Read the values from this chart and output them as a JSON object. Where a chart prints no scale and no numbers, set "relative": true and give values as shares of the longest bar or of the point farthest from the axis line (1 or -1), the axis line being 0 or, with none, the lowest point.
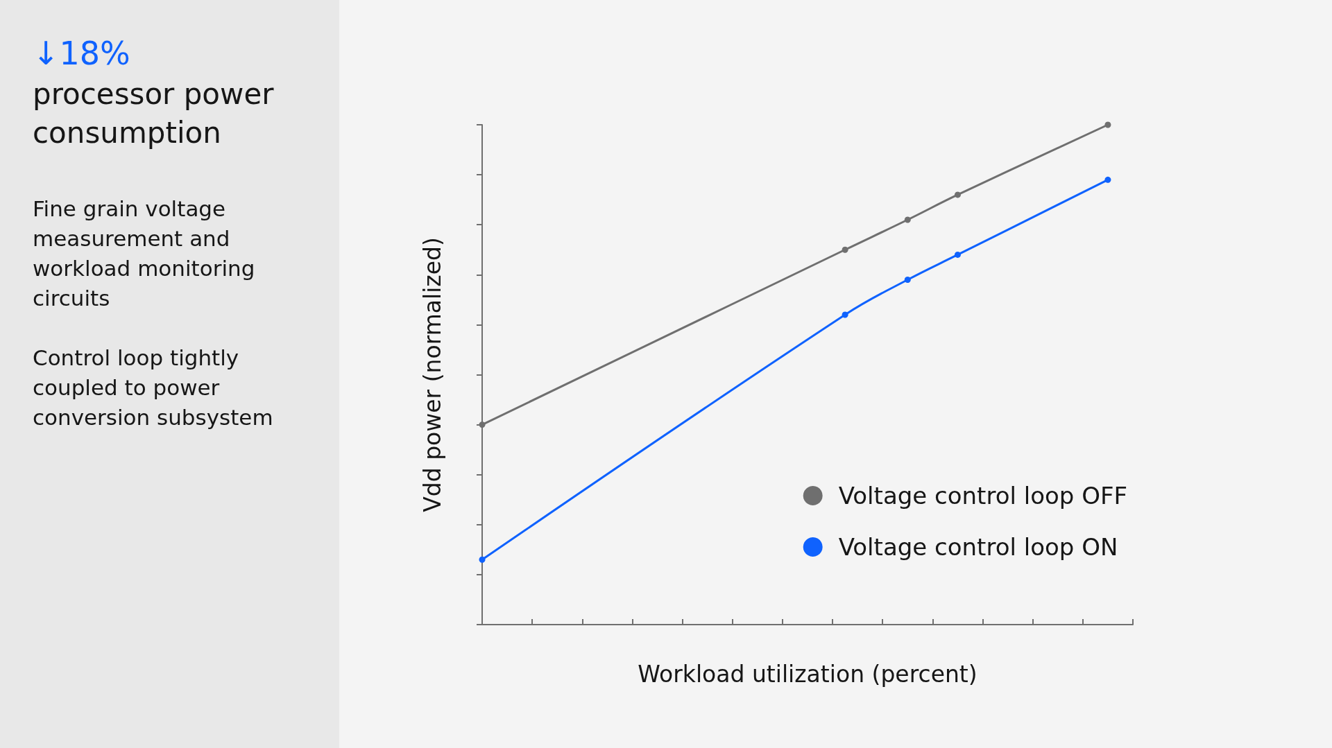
{
  "chart_data": {
    "type": "line",
    "title": "↓18%",
    "subtitle": "processor power consumption",
    "annotations": [
      "Fine grain voltage measurement and workload monitoring circuits",
      "Control loop tightly coupled to power conversion subsystem"
    ],
    "xlabel": "Workload utilization (percent)",
    "ylabel": "Vdd power (normalized)",
    "relative": true,
    "categories": [
      null,
      null,
      null,
      null,
      null,
      null,
      null,
      null,
      null,
      null,
      null,
      null,
      null,
      null,
      null,
      null,
      null,
      null,
      null,
      null,
      null,
      null,
      null,
      null,
      null,
      null,
      null,
      null,
      null,
      null,
      null,
      null,
      null,
      null,
      null,
      null,
      null,
      null,
      null,
      null,
      null,
      null,
      null,
      null,
      null,
      null,
      null,
      null,
      null,
      null,
      null,
      null,
      null
    ],
    "series": [
      {
        "name": "Voltage control loop OFF",
        "color": "#6f6f6f",
        "values": [
          0.4,
          null,
          null,
          null,
          null,
          null,
          null,
          null,
          null,
          null,
          null,
          null,
          null,
          null,
          null,
          null,
          null,
          null,
          null,
          null,
          null,
          null,
          null,
          null,
          null,
          null,
          null,
          null,
          null,
          0.75,
          null,
          null,
          null,
          null,
          0.81,
          null,
          null,
          null,
          0.86,
          null,
          null,
          null,
          null,
          null,
          null,
          null,
          null,
          null,
          null,
          null,
          1.0,
          null,
          null
        ]
      },
      {
        "name": "Voltage control loop ON",
        "color": "#0f62fe",
        "values": [
          0.13,
          null,
          null,
          null,
          null,
          null,
          null,
          null,
          null,
          null,
          null,
          null,
          null,
          null,
          null,
          null,
          null,
          null,
          null,
          null,
          null,
          null,
          null,
          null,
          null,
          null,
          null,
          null,
          null,
          0.62,
          null,
          null,
          null,
          null,
          0.69,
          null,
          null,
          null,
          0.74,
          null,
          null,
          null,
          null,
          null,
          null,
          null,
          null,
          null,
          null,
          null,
          0.89,
          null,
          null
        ]
      }
    ],
    "marker": "circle",
    "line_style": "solid",
    "legend": "bottom right",
    "grid": false
  }
}
